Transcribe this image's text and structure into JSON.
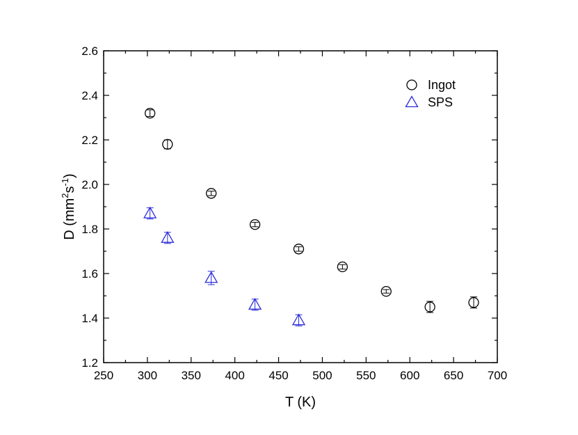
{
  "chart_data": {
    "type": "scatter",
    "xlabel": "T (K)",
    "ylabel": {
      "main": "D (mm",
      "sup1": "2",
      "mid": "s",
      "sup2": "-1",
      "end": ")"
    },
    "xlim": [
      250,
      700
    ],
    "ylim": [
      1.2,
      2.6
    ],
    "xticks": [
      250,
      300,
      350,
      400,
      450,
      500,
      550,
      600,
      650,
      700
    ],
    "yticks": [
      1.2,
      1.4,
      1.6,
      1.8,
      2.0,
      2.2,
      2.4,
      2.6
    ],
    "xtick_labels": [
      "250",
      "300",
      "350",
      "400",
      "450",
      "500",
      "550",
      "600",
      "650",
      "700"
    ],
    "ytick_labels": [
      "1.2",
      "1.4",
      "1.6",
      "1.8",
      "2.0",
      "2.2",
      "2.4",
      "2.6"
    ],
    "legend_position": "top-right",
    "series": [
      {
        "name": "Ingot",
        "marker": "circle",
        "color": "#000000",
        "x": [
          303,
          323,
          373,
          423,
          473,
          523,
          573,
          623,
          673
        ],
        "y": [
          2.32,
          2.18,
          1.96,
          1.82,
          1.71,
          1.63,
          1.52,
          1.45,
          1.47
        ],
        "yerr": [
          0.015,
          0.02,
          0.01,
          0.01,
          0.01,
          0.01,
          0.008,
          0.025,
          0.025
        ]
      },
      {
        "name": "SPS",
        "marker": "triangle",
        "color": "#2b2bd9",
        "x": [
          303,
          323,
          373,
          423,
          473
        ],
        "y": [
          1.87,
          1.76,
          1.58,
          1.46,
          1.39
        ],
        "yerr": [
          0.025,
          0.025,
          0.03,
          0.025,
          0.025
        ]
      }
    ]
  }
}
